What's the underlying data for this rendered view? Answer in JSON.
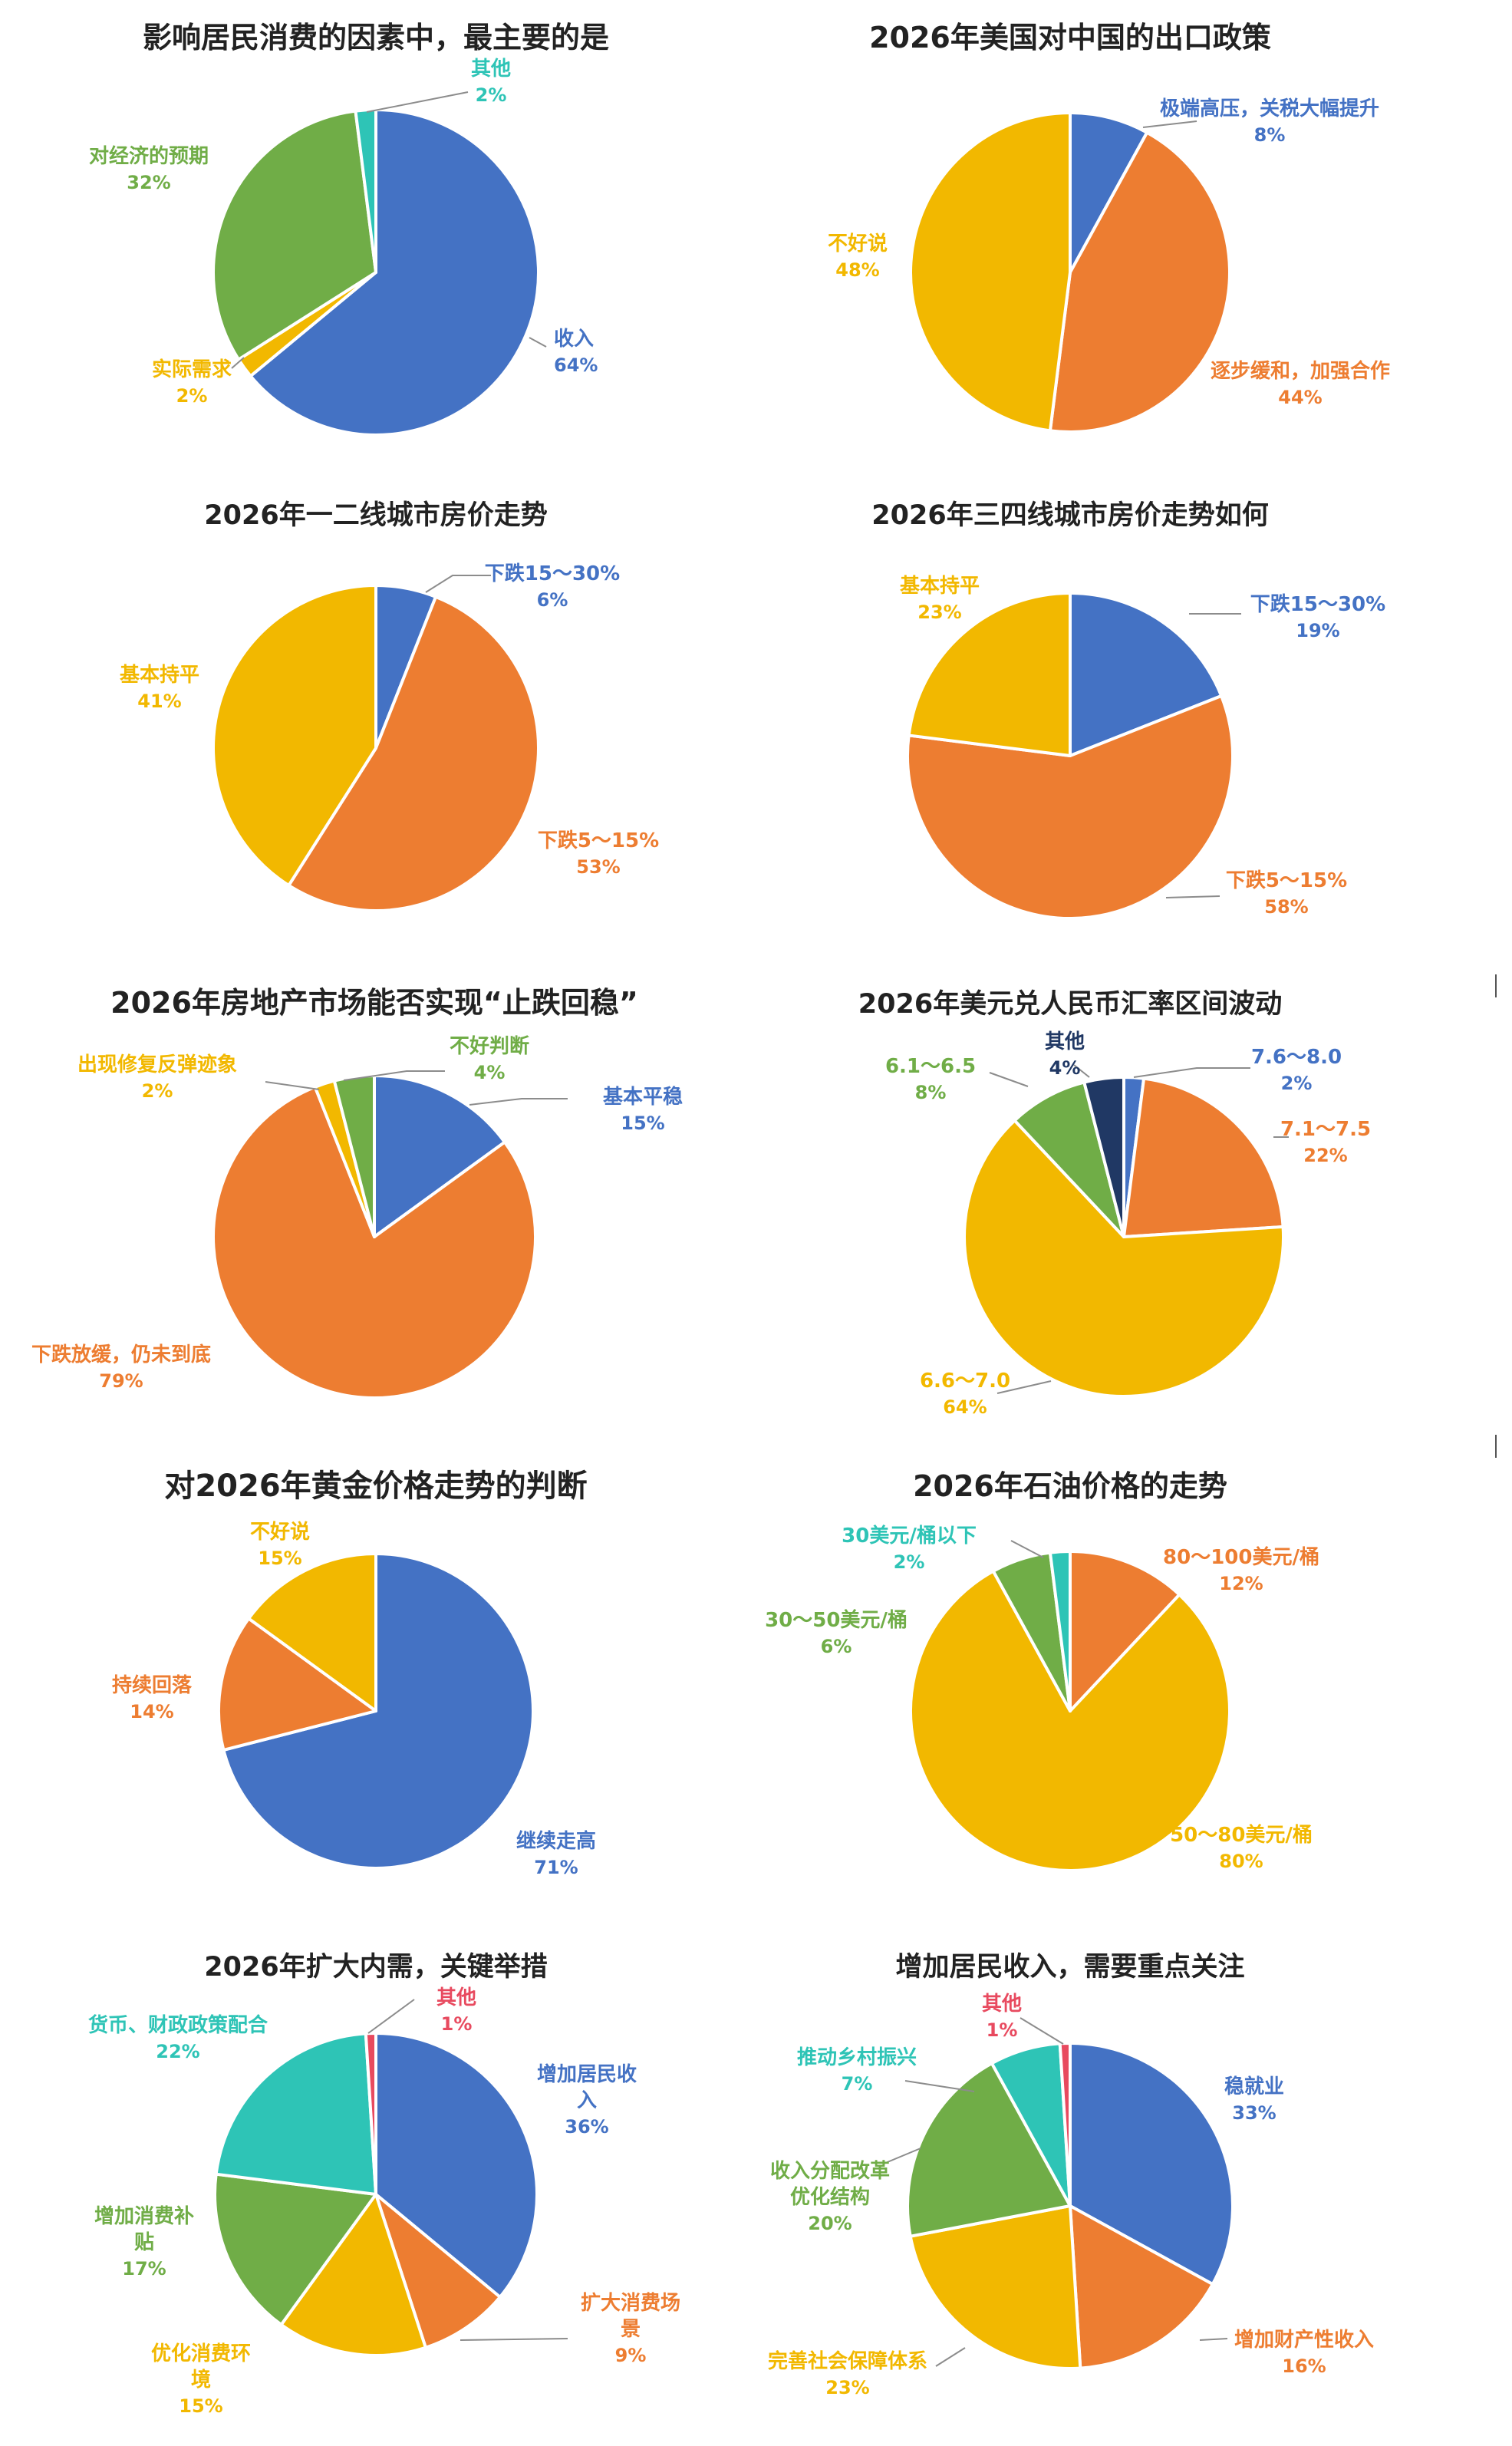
{
  "colors": {
    "blue": "#4472C4",
    "orange": "#ED7D31",
    "yellow": "#F2B800",
    "green": "#70AD47",
    "teal": "#2EC4B6",
    "navy": "#203864",
    "red": "#E84A5F"
  },
  "chart_data": [
    {
      "type": "pie",
      "title": "影响居民消费的因素中，最主要的是",
      "slices": [
        {
          "label": "收入",
          "value": 64,
          "pct": "64%",
          "color": "#4472C4"
        },
        {
          "label": "实际需求",
          "value": 2,
          "pct": "2%",
          "color": "#F2B800"
        },
        {
          "label": "对经济的预期",
          "value": 32,
          "pct": "32%",
          "color": "#70AD47"
        },
        {
          "label": "其他",
          "value": 2,
          "pct": "2%",
          "color": "#2EC4B6"
        }
      ]
    },
    {
      "type": "pie",
      "title": "2026年美国对中国的出口政策",
      "slices": [
        {
          "label": "极端高压，关税大幅提升",
          "value": 8,
          "pct": "8%",
          "color": "#4472C4"
        },
        {
          "label": "逐步缓和，加强合作",
          "value": 44,
          "pct": "44%",
          "color": "#ED7D31"
        },
        {
          "label": "不好说",
          "value": 48,
          "pct": "48%",
          "color": "#F2B800"
        }
      ]
    },
    {
      "type": "pie",
      "title": "2026年一二线城市房价走势",
      "slices": [
        {
          "label": "下跌15～30%",
          "value": 6,
          "pct": "6%",
          "color": "#4472C4"
        },
        {
          "label": "下跌5～15%",
          "value": 53,
          "pct": "53%",
          "color": "#ED7D31"
        },
        {
          "label": "基本持平",
          "value": 41,
          "pct": "41%",
          "color": "#F2B800"
        }
      ]
    },
    {
      "type": "pie",
      "title": "2026年三四线城市房价走势如何",
      "slices": [
        {
          "label": "下跌15～30%",
          "value": 19,
          "pct": "19%",
          "color": "#4472C4"
        },
        {
          "label": "下跌5～15%",
          "value": 58,
          "pct": "58%",
          "color": "#ED7D31"
        },
        {
          "label": "基本持平",
          "value": 23,
          "pct": "23%",
          "color": "#F2B800"
        }
      ]
    },
    {
      "type": "pie",
      "title": "2026年房地产市场能否实现“止跌回稳”",
      "slices": [
        {
          "label": "基本平稳",
          "value": 15,
          "pct": "15%",
          "color": "#4472C4"
        },
        {
          "label": "下跌放缓，仍未到底",
          "value": 79,
          "pct": "79%",
          "color": "#ED7D31"
        },
        {
          "label": "出现修复反弹迹象",
          "value": 2,
          "pct": "2%",
          "color": "#F2B800"
        },
        {
          "label": "不好判断",
          "value": 4,
          "pct": "4%",
          "color": "#70AD47"
        }
      ]
    },
    {
      "type": "pie",
      "title": "2026年美元兑人民币汇率区间波动",
      "slices": [
        {
          "label": "7.6～8.0",
          "value": 2,
          "pct": "2%",
          "color": "#4472C4"
        },
        {
          "label": "7.1～7.5",
          "value": 22,
          "pct": "22%",
          "color": "#ED7D31"
        },
        {
          "label": "6.6～7.0",
          "value": 64,
          "pct": "64%",
          "color": "#F2B800"
        },
        {
          "label": "6.1～6.5",
          "value": 8,
          "pct": "8%",
          "color": "#70AD47"
        },
        {
          "label": "其他",
          "value": 4,
          "pct": "4%",
          "color": "#203864"
        }
      ]
    },
    {
      "type": "pie",
      "title": "对2026年黄金价格走势的判断",
      "slices": [
        {
          "label": "继续走高",
          "value": 71,
          "pct": "71%",
          "color": "#4472C4"
        },
        {
          "label": "持续回落",
          "value": 14,
          "pct": "14%",
          "color": "#ED7D31"
        },
        {
          "label": "不好说",
          "value": 15,
          "pct": "15%",
          "color": "#F2B800"
        }
      ]
    },
    {
      "type": "pie",
      "title": "2026年石油价格的走势",
      "slices": [
        {
          "label": "80～100美元/桶",
          "value": 12,
          "pct": "12%",
          "color": "#ED7D31"
        },
        {
          "label": "50～80美元/桶",
          "value": 80,
          "pct": "80%",
          "color": "#F2B800"
        },
        {
          "label": "30～50美元/桶",
          "value": 6,
          "pct": "6%",
          "color": "#70AD47"
        },
        {
          "label": "30美元/桶以下",
          "value": 2,
          "pct": "2%",
          "color": "#2EC4B6"
        }
      ]
    },
    {
      "type": "pie",
      "title": "2026年扩大内需，关键举措",
      "slices": [
        {
          "label": "增加居民收入",
          "value": 36,
          "pct": "36%",
          "color": "#4472C4"
        },
        {
          "label": "扩大消费场景",
          "value": 9,
          "pct": "9%",
          "color": "#ED7D31"
        },
        {
          "label": "优化消费环境",
          "value": 15,
          "pct": "15%",
          "color": "#F2B800"
        },
        {
          "label": "增加消费补贴",
          "value": 17,
          "pct": "17%",
          "color": "#70AD47"
        },
        {
          "label": "货币、财政政策配合",
          "value": 22,
          "pct": "22%",
          "color": "#2EC4B6"
        },
        {
          "label": "其他",
          "value": 1,
          "pct": "1%",
          "color": "#E84A5F"
        }
      ]
    },
    {
      "type": "pie",
      "title": "增加居民收入，需要重点关注",
      "slices": [
        {
          "label": "稳就业",
          "value": 33,
          "pct": "33%",
          "color": "#4472C4"
        },
        {
          "label": "增加财产性收入",
          "value": 16,
          "pct": "16%",
          "color": "#ED7D31"
        },
        {
          "label": "完善社会保障体系",
          "value": 23,
          "pct": "23%",
          "color": "#F2B800"
        },
        {
          "label": "收入分配改革优化结构",
          "value": 20,
          "pct": "20%",
          "color": "#70AD47"
        },
        {
          "label": "推动乡村振兴",
          "value": 7,
          "pct": "7%",
          "color": "#2EC4B6"
        },
        {
          "label": "其他",
          "value": 1,
          "pct": "1%",
          "color": "#E84A5F"
        }
      ]
    }
  ]
}
